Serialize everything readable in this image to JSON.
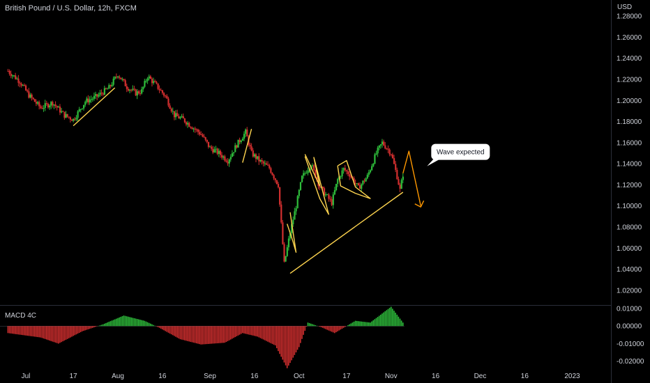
{
  "chart_data": {
    "type": "candlestick",
    "title": "British Pound / U.S. Dollar, 12h, FXCM",
    "currency": "USD",
    "theme": {
      "background": "#000000",
      "up": "#26a69a",
      "up_bright": "#2ebd3b",
      "down": "#d32f2f",
      "pattern_line": "#ffd54f",
      "forecast_line": "#ff9800",
      "macd_pos": "#2ebd3b",
      "macd_neg": "#d32f2f",
      "axis_text": "#d1d4dc"
    },
    "price_axis": {
      "ticks": [
        "1.28000",
        "1.26000",
        "1.24000",
        "1.22000",
        "1.20000",
        "1.18000",
        "1.16000",
        "1.14000",
        "1.12000",
        "1.10000",
        "1.08000",
        "1.06000",
        "1.04000",
        "1.02000"
      ],
      "range": [
        1.01,
        1.292
      ]
    },
    "time_axis": {
      "ticks": [
        "Jul",
        "17",
        "Aug",
        "16",
        "Sep",
        "16",
        "Oct",
        "17",
        "Nov",
        "16",
        "Dec",
        "16",
        "2023"
      ],
      "tick_dates": [
        "2022-07-01",
        "2022-07-17",
        "2022-08-01",
        "2022-08-16",
        "2022-09-01",
        "2022-09-16",
        "2022-10-01",
        "2022-10-17",
        "2022-11-01",
        "2022-11-16",
        "2022-12-01",
        "2022-12-16",
        "2023-01-01"
      ]
    },
    "price_path": [
      {
        "date": "2022-06-25",
        "close": 1.228
      },
      {
        "date": "2022-06-29",
        "close": 1.218
      },
      {
        "date": "2022-07-02",
        "close": 1.205
      },
      {
        "date": "2022-07-06",
        "close": 1.193
      },
      {
        "date": "2022-07-10",
        "close": 1.198
      },
      {
        "date": "2022-07-14",
        "close": 1.186
      },
      {
        "date": "2022-07-17",
        "close": 1.182
      },
      {
        "date": "2022-07-21",
        "close": 1.199
      },
      {
        "date": "2022-07-25",
        "close": 1.204
      },
      {
        "date": "2022-07-29",
        "close": 1.212
      },
      {
        "date": "2022-08-01",
        "close": 1.225
      },
      {
        "date": "2022-08-04",
        "close": 1.213
      },
      {
        "date": "2022-08-07",
        "close": 1.207
      },
      {
        "date": "2022-08-09",
        "close": 1.209
      },
      {
        "date": "2022-08-11",
        "close": 1.223
      },
      {
        "date": "2022-08-14",
        "close": 1.214
      },
      {
        "date": "2022-08-17",
        "close": 1.204
      },
      {
        "date": "2022-08-20",
        "close": 1.186
      },
      {
        "date": "2022-08-23",
        "close": 1.182
      },
      {
        "date": "2022-08-26",
        "close": 1.175
      },
      {
        "date": "2022-08-29",
        "close": 1.168
      },
      {
        "date": "2022-09-01",
        "close": 1.155
      },
      {
        "date": "2022-09-04",
        "close": 1.15
      },
      {
        "date": "2022-09-07",
        "close": 1.143
      },
      {
        "date": "2022-09-10",
        "close": 1.158
      },
      {
        "date": "2022-09-13",
        "close": 1.17
      },
      {
        "date": "2022-09-15",
        "close": 1.15
      },
      {
        "date": "2022-09-18",
        "close": 1.142
      },
      {
        "date": "2022-09-21",
        "close": 1.136
      },
      {
        "date": "2022-09-24",
        "close": 1.12
      },
      {
        "date": "2022-09-26",
        "close": 1.045
      },
      {
        "date": "2022-09-28",
        "close": 1.075
      },
      {
        "date": "2022-09-30",
        "close": 1.1
      },
      {
        "date": "2022-10-02",
        "close": 1.127
      },
      {
        "date": "2022-10-05",
        "close": 1.14
      },
      {
        "date": "2022-10-08",
        "close": 1.118
      },
      {
        "date": "2022-10-12",
        "close": 1.103
      },
      {
        "date": "2022-10-14",
        "close": 1.125
      },
      {
        "date": "2022-10-16",
        "close": 1.135
      },
      {
        "date": "2022-10-18",
        "close": 1.13
      },
      {
        "date": "2022-10-21",
        "close": 1.117
      },
      {
        "date": "2022-10-24",
        "close": 1.128
      },
      {
        "date": "2022-10-27",
        "close": 1.15
      },
      {
        "date": "2022-10-29",
        "close": 1.16
      },
      {
        "date": "2022-11-01",
        "close": 1.15
      },
      {
        "date": "2022-11-03",
        "close": 1.128
      },
      {
        "date": "2022-11-04",
        "close": 1.115
      },
      {
        "date": "2022-11-05",
        "close": 1.13
      }
    ],
    "patterns": [
      {
        "color": "yellow",
        "points": [
          [
            "2022-07-17",
            1.176
          ],
          [
            "2022-07-31",
            1.212
          ]
        ]
      },
      {
        "color": "yellow",
        "points": [
          [
            "2022-09-12",
            1.141
          ],
          [
            "2022-09-15",
            1.173
          ]
        ]
      },
      {
        "color": "yellow",
        "points": [
          [
            "2022-09-28",
            1.036
          ],
          [
            "2022-11-05",
            1.113
          ]
        ]
      },
      {
        "color": "yellow",
        "points": [
          [
            "2022-09-28",
            1.094
          ],
          [
            "2022-09-30",
            1.056
          ],
          [
            "2022-09-29",
            1.066
          ],
          [
            "2022-09-27",
            1.083
          ]
        ]
      },
      {
        "color": "yellow",
        "points": [
          [
            "2022-10-03",
            1.149
          ],
          [
            "2022-10-08",
            1.119
          ],
          [
            "2022-10-06",
            1.146
          ],
          [
            "2022-10-11",
            1.092
          ],
          [
            "2022-10-08",
            1.107
          ],
          [
            "2022-10-03",
            1.147
          ]
        ]
      },
      {
        "color": "yellow",
        "points": [
          [
            "2022-10-14",
            1.138
          ],
          [
            "2022-10-17",
            1.143
          ],
          [
            "2022-10-20",
            1.118
          ],
          [
            "2022-10-25",
            1.107
          ],
          [
            "2022-10-20",
            1.112
          ],
          [
            "2022-10-15",
            1.119
          ],
          [
            "2022-10-14",
            1.138
          ]
        ]
      },
      {
        "color": "orange",
        "points": [
          [
            "2022-11-05",
            1.131
          ],
          [
            "2022-11-07",
            1.152
          ],
          [
            "2022-11-11",
            1.1
          ]
        ]
      },
      {
        "color": "orange",
        "points": [
          [
            "2022-11-09",
            1.102
          ],
          [
            "2022-11-11",
            1.099
          ],
          [
            "2022-11-12",
            1.105
          ]
        ]
      }
    ],
    "callout": {
      "text": "Wave expected",
      "date": "2022-11-11",
      "price": 1.145
    },
    "indicator": {
      "name": "MACD 4C",
      "ticks": [
        "0.01000",
        "0.00000",
        "-0.01000",
        "-0.02000"
      ],
      "range": [
        -0.0245,
        0.012
      ],
      "path": [
        {
          "date": "2022-06-25",
          "value": -0.004
        },
        {
          "date": "2022-07-06",
          "value": -0.0065
        },
        {
          "date": "2022-07-12",
          "value": -0.01
        },
        {
          "date": "2022-07-20",
          "value": -0.003
        },
        {
          "date": "2022-07-27",
          "value": 0.001
        },
        {
          "date": "2022-08-03",
          "value": 0.006
        },
        {
          "date": "2022-08-10",
          "value": 0.003
        },
        {
          "date": "2022-08-15",
          "value": -0.001
        },
        {
          "date": "2022-08-22",
          "value": -0.0075
        },
        {
          "date": "2022-08-29",
          "value": -0.0105
        },
        {
          "date": "2022-09-06",
          "value": -0.0095
        },
        {
          "date": "2022-09-12",
          "value": -0.004
        },
        {
          "date": "2022-09-17",
          "value": -0.006
        },
        {
          "date": "2022-09-23",
          "value": -0.011
        },
        {
          "date": "2022-09-27",
          "value": -0.024
        },
        {
          "date": "2022-10-01",
          "value": -0.012
        },
        {
          "date": "2022-10-04",
          "value": 0.002
        },
        {
          "date": "2022-10-09",
          "value": -0.001
        },
        {
          "date": "2022-10-13",
          "value": -0.004
        },
        {
          "date": "2022-10-20",
          "value": 0.003
        },
        {
          "date": "2022-10-25",
          "value": 0.002
        },
        {
          "date": "2022-11-01",
          "value": 0.011
        },
        {
          "date": "2022-11-05",
          "value": 0.002
        }
      ]
    }
  }
}
